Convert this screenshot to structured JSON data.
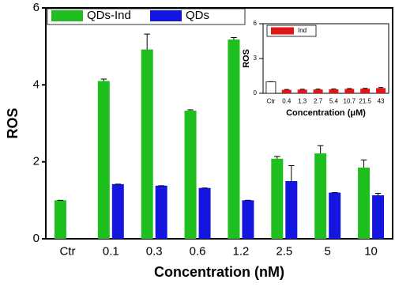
{
  "chart_data": [
    {
      "type": "bar",
      "xlabel": "Concentration (nM)",
      "ylabel": "ROS",
      "categories": [
        "Ctr",
        "0.1",
        "0.3",
        "0.6",
        "1.2",
        "2.5",
        "5",
        "10"
      ],
      "series": [
        {
          "name": "QDs-Ind",
          "color": "#1fbf1f",
          "values": [
            1.0,
            4.1,
            4.92,
            3.33,
            5.18,
            2.08,
            2.22,
            1.85
          ],
          "errors": [
            0,
            0.05,
            0.4,
            0.02,
            0.05,
            0.06,
            0.2,
            0.2
          ]
        },
        {
          "name": "QDs",
          "color": "#1515e0",
          "values": [
            null,
            1.42,
            1.38,
            1.32,
            1.0,
            1.5,
            1.2,
            1.13
          ],
          "errors": [
            null,
            0,
            0,
            0,
            0,
            0.4,
            0,
            0.05
          ]
        }
      ],
      "ylim": [
        0,
        6
      ],
      "yticks": [
        0,
        2,
        4,
        6
      ],
      "legend": "upper left"
    },
    {
      "type": "bar",
      "xlabel": "Concentration (μM)",
      "ylabel": "ROS",
      "categories": [
        "Ctr",
        "0.4",
        "1.3",
        "2.7",
        "5.4",
        "10.7",
        "21.5",
        "43"
      ],
      "series": [
        {
          "name": "Ind",
          "color": "#e01515",
          "colors": [
            "#ffffff",
            "#e01515",
            "#e01515",
            "#e01515",
            "#e01515",
            "#e01515",
            "#e01515",
            "#e01515"
          ],
          "values": [
            1.0,
            0.3,
            0.32,
            0.33,
            0.35,
            0.38,
            0.4,
            0.45
          ],
          "errors": [
            0,
            0.03,
            0.03,
            0.03,
            0.03,
            0.03,
            0.03,
            0.05
          ]
        }
      ],
      "ylim": [
        0,
        6
      ],
      "yticks": [
        0,
        3,
        6
      ],
      "legend": "upper left"
    }
  ]
}
